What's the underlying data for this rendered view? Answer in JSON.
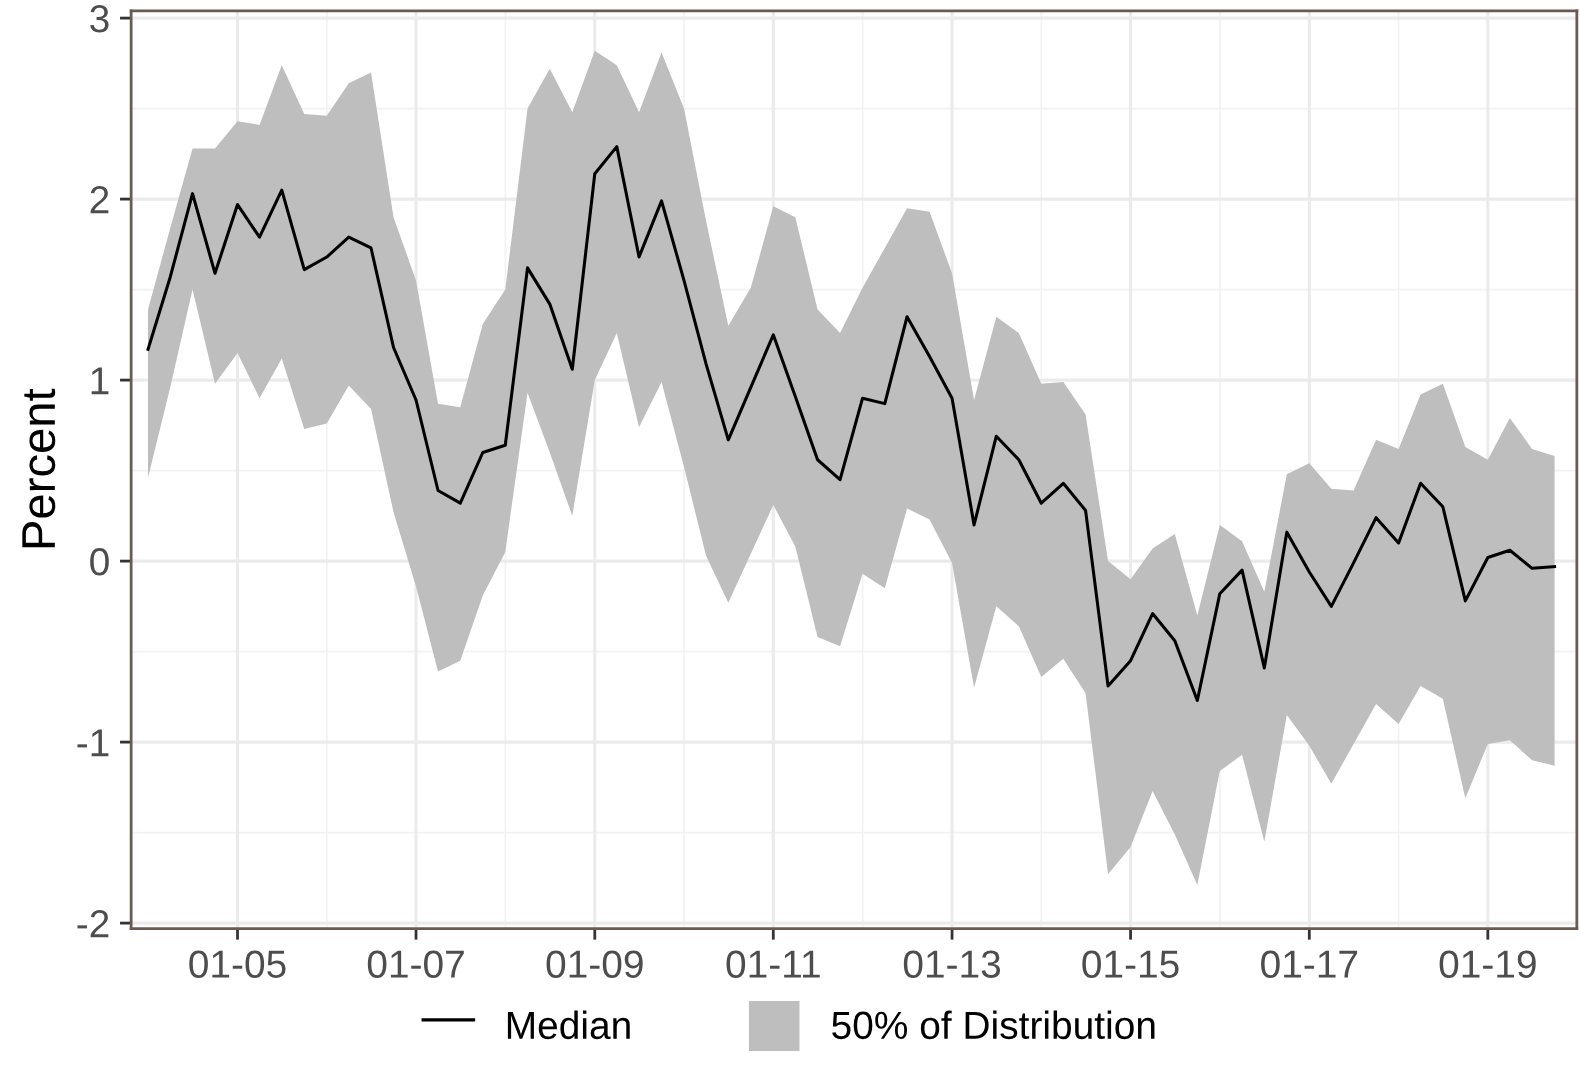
{
  "chart_data": {
    "type": "line",
    "ylabel": "Percent",
    "annotations": [
      "50% of Distribution"
    ],
    "x": [
      "2004-01",
      "2004-04",
      "2004-07",
      "2004-10",
      "2005-01",
      "2005-04",
      "2005-07",
      "2005-10",
      "2006-01",
      "2006-04",
      "2006-07",
      "2006-10",
      "2007-01",
      "2007-04",
      "2007-07",
      "2007-10",
      "2008-01",
      "2008-04",
      "2008-07",
      "2008-10",
      "2009-01",
      "2009-04",
      "2009-07",
      "2009-10",
      "2010-01",
      "2010-04",
      "2010-07",
      "2010-10",
      "2011-01",
      "2011-04",
      "2011-07",
      "2011-10",
      "2012-01",
      "2012-04",
      "2012-07",
      "2012-10",
      "2013-01",
      "2013-04",
      "2013-07",
      "2013-10",
      "2014-01",
      "2014-04",
      "2014-07",
      "2014-10",
      "2015-01",
      "2015-04",
      "2015-07",
      "2015-10",
      "2016-01",
      "2016-04",
      "2016-07",
      "2016-10",
      "2017-01",
      "2017-04",
      "2017-07",
      "2017-10",
      "2018-01",
      "2018-04",
      "2018-07",
      "2018-10",
      "2019-01",
      "2019-04",
      "2019-07",
      "2019-10"
    ],
    "series": [
      {
        "name": "Median",
        "color": "#000000",
        "values": [
          1.17,
          1.57,
          2.03,
          1.59,
          1.97,
          1.79,
          2.05,
          1.61,
          1.68,
          1.79,
          1.73,
          1.18,
          0.89,
          0.39,
          0.32,
          0.6,
          0.64,
          1.62,
          1.42,
          1.06,
          2.14,
          2.29,
          1.68,
          1.99,
          1.55,
          1.09,
          0.67,
          0.96,
          1.25,
          0.91,
          0.56,
          0.45,
          0.9,
          0.87,
          1.35,
          1.13,
          0.9,
          0.2,
          0.69,
          0.56,
          0.32,
          0.43,
          0.28,
          -0.69,
          -0.55,
          -0.29,
          -0.44,
          -0.77,
          -0.18,
          -0.05,
          -0.59,
          0.16,
          -0.06,
          -0.25,
          -0.01,
          0.24,
          0.1,
          0.43,
          0.3,
          -0.22,
          0.02,
          0.06,
          -0.04,
          -0.03
        ],
        "lower": [
          0.46,
          0.96,
          1.5,
          0.98,
          1.15,
          0.9,
          1.12,
          0.73,
          0.76,
          0.97,
          0.84,
          0.27,
          -0.14,
          -0.61,
          -0.55,
          -0.19,
          0.05,
          0.93,
          0.6,
          0.25,
          1.0,
          1.26,
          0.74,
          0.99,
          0.52,
          0.03,
          -0.23,
          0.04,
          0.31,
          0.08,
          -0.42,
          -0.47,
          -0.07,
          -0.15,
          0.29,
          0.23,
          -0.01,
          -0.7,
          -0.25,
          -0.36,
          -0.64,
          -0.54,
          -0.73,
          -1.73,
          -1.58,
          -1.27,
          -1.51,
          -1.79,
          -1.16,
          -1.07,
          -1.55,
          -0.85,
          -1.02,
          -1.23,
          -1.01,
          -0.79,
          -0.9,
          -0.69,
          -0.76,
          -1.31,
          -1.01,
          -0.99,
          -1.1,
          -1.13
        ],
        "upper": [
          1.39,
          1.84,
          2.28,
          2.28,
          2.43,
          2.41,
          2.74,
          2.47,
          2.46,
          2.64,
          2.7,
          1.9,
          1.55,
          0.87,
          0.85,
          1.31,
          1.5,
          2.5,
          2.72,
          2.48,
          2.82,
          2.74,
          2.48,
          2.81,
          2.5,
          1.88,
          1.3,
          1.51,
          1.96,
          1.9,
          1.39,
          1.26,
          1.51,
          1.73,
          1.95,
          1.93,
          1.59,
          0.89,
          1.35,
          1.26,
          0.98,
          0.99,
          0.81,
          0.0,
          -0.1,
          0.07,
          0.15,
          -0.3,
          0.2,
          0.11,
          -0.17,
          0.48,
          0.54,
          0.4,
          0.39,
          0.67,
          0.62,
          0.92,
          0.98,
          0.63,
          0.56,
          0.79,
          0.62,
          0.58
        ]
      }
    ],
    "xlim": [
      "2003-10-24",
      "2019-12-31"
    ],
    "xticks": [
      {
        "value": "2005-01-01",
        "label": "01-05"
      },
      {
        "value": "2007-01-01",
        "label": "01-07"
      },
      {
        "value": "2009-01-01",
        "label": "01-09"
      },
      {
        "value": "2011-01-01",
        "label": "01-11"
      },
      {
        "value": "2013-01-01",
        "label": "01-13"
      },
      {
        "value": "2015-01-01",
        "label": "01-15"
      },
      {
        "value": "2017-01-01",
        "label": "01-17"
      },
      {
        "value": "2019-01-01",
        "label": "01-19"
      }
    ],
    "ylim": [
      -2.03,
      3.04
    ],
    "yticks": [
      -2,
      -1,
      0,
      1,
      2,
      3
    ],
    "grid": true,
    "legend": "bottom",
    "marker": "none",
    "line_style": "solid"
  }
}
